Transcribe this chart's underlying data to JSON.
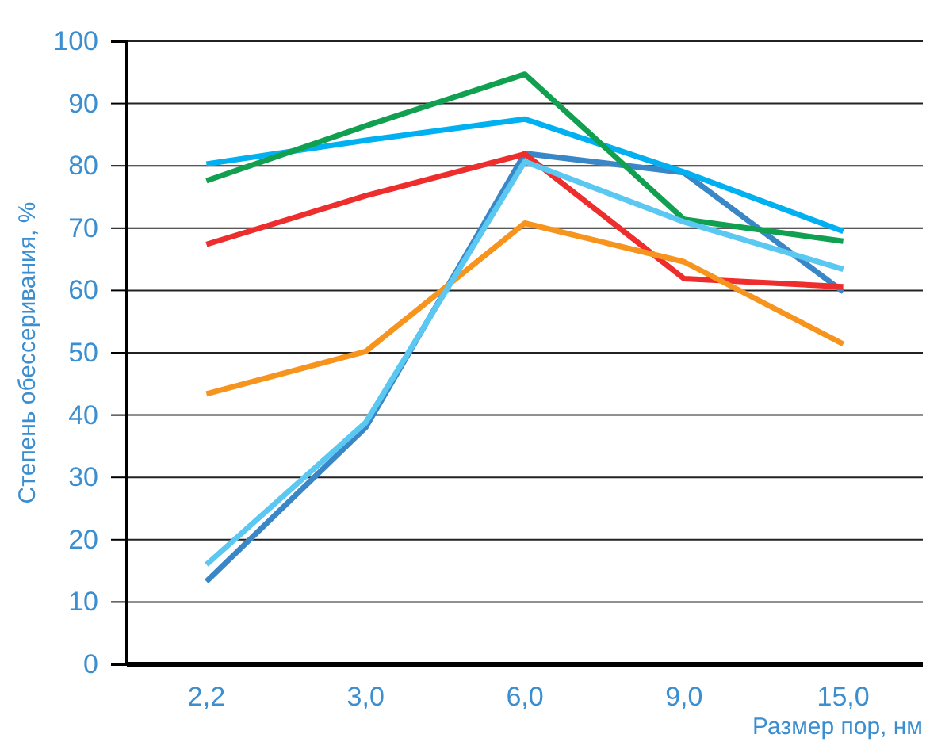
{
  "chart_data": {
    "type": "line",
    "xlabel": "Размер пор, нм",
    "ylabel": "Степень обессеривания, %",
    "categories": [
      "2,2",
      "3,0",
      "6,0",
      "9,0",
      "15,0"
    ],
    "series": [
      {
        "color": "#3a87c8",
        "values": [
          13.3,
          38,
          82,
          78.9,
          59.8
        ]
      },
      {
        "color": "#00b0f0",
        "values": [
          80.3,
          84.1,
          87.5,
          79,
          69.5
        ]
      },
      {
        "color": "#10a050",
        "values": [
          77.6,
          86.4,
          94.7,
          71.4,
          67.9
        ]
      },
      {
        "color": "#ee2d2d",
        "values": [
          67.4,
          75.2,
          81.9,
          61.9,
          60.6
        ]
      },
      {
        "color": "#f7941d",
        "values": [
          43.4,
          50.2,
          70.8,
          64.6,
          51.4
        ]
      },
      {
        "color": "#5bc8f2",
        "values": [
          16,
          38.8,
          80.7,
          71,
          63.4
        ]
      }
    ],
    "ylim": [
      0,
      100
    ],
    "yticks": [
      0,
      10,
      20,
      30,
      40,
      50,
      60,
      70,
      80,
      90,
      100
    ],
    "grid": "y",
    "marker": "none",
    "line_style": "solid"
  }
}
